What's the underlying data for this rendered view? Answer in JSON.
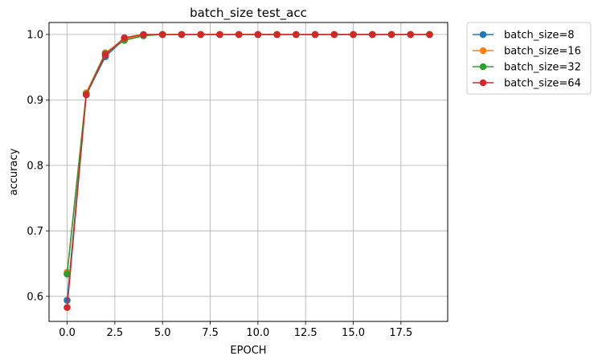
{
  "chart_data": {
    "type": "line",
    "title": "batch_size test_acc",
    "xlabel": "EPOCH",
    "ylabel": "accuracy",
    "xlim": [
      -0.95,
      19.95
    ],
    "ylim": [
      0.5617,
      1.0183
    ],
    "xticks": [
      0.0,
      2.5,
      5.0,
      7.5,
      10.0,
      12.5,
      15.0,
      17.5
    ],
    "xtick_labels": [
      "0.0",
      "2.5",
      "5.0",
      "7.5",
      "10.0",
      "12.5",
      "15.0",
      "17.5"
    ],
    "yticks": [
      0.6,
      0.7,
      0.8,
      0.9,
      1.0
    ],
    "ytick_labels": [
      "0.6",
      "0.7",
      "0.8",
      "0.9",
      "1.0"
    ],
    "grid": true,
    "legend_position": "outside-top-right",
    "x": [
      0,
      1,
      2,
      3,
      4,
      5,
      6,
      7,
      8,
      9,
      10,
      11,
      12,
      13,
      14,
      15,
      16,
      17,
      18,
      19
    ],
    "series": [
      {
        "name": "batch_size=8",
        "color": "#1f77b4",
        "values": [
          0.594,
          0.908,
          0.966,
          0.993,
          0.999,
          1.0,
          1.0,
          1.0,
          1.0,
          1.0,
          1.0,
          1.0,
          1.0,
          1.0,
          1.0,
          1.0,
          1.0,
          1.0,
          1.0,
          1.0
        ]
      },
      {
        "name": "batch_size=16",
        "color": "#ff7f0e",
        "values": [
          0.637,
          0.911,
          0.972,
          0.993,
          0.999,
          1.0,
          1.0,
          1.0,
          1.0,
          1.0,
          1.0,
          1.0,
          1.0,
          1.0,
          1.0,
          1.0,
          1.0,
          1.0,
          1.0,
          1.0
        ]
      },
      {
        "name": "batch_size=32",
        "color": "#2ca02c",
        "values": [
          0.634,
          0.909,
          0.971,
          0.991,
          0.998,
          1.0,
          1.0,
          1.0,
          1.0,
          1.0,
          1.0,
          1.0,
          1.0,
          1.0,
          1.0,
          1.0,
          1.0,
          1.0,
          1.0,
          1.0
        ]
      },
      {
        "name": "batch_size=64",
        "color": "#d62728",
        "values": [
          0.583,
          0.908,
          0.969,
          0.995,
          1.0,
          1.0,
          1.0,
          1.0,
          1.0,
          1.0,
          1.0,
          1.0,
          1.0,
          1.0,
          1.0,
          1.0,
          1.0,
          1.0,
          1.0,
          1.0
        ]
      }
    ]
  }
}
